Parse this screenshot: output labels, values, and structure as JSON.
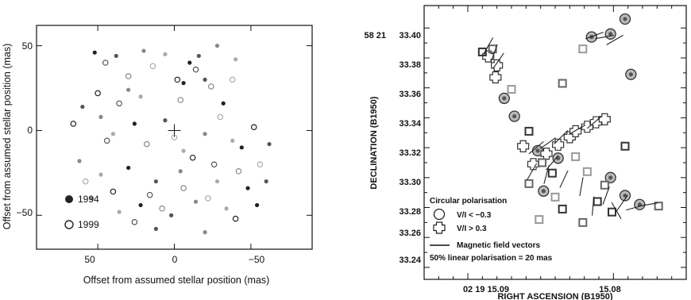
{
  "chart_data": [
    {
      "type": "scatter",
      "xlabel": "Offset from assumed stellar position (mas)",
      "ylabel": "Offset from assumed stellar position (mas)",
      "xlim": [
        90,
        -90
      ],
      "ylim": [
        -70,
        62
      ],
      "x_ticks": [
        "50",
        "0",
        "−50"
      ],
      "y_ticks": [
        "50",
        "0",
        "−50"
      ],
      "legend": [
        {
          "label": "1994",
          "marker": "filled-circle"
        },
        {
          "label": "1999",
          "marker": "open-circle"
        }
      ],
      "series": [
        {
          "name": "1994",
          "marker": "filled",
          "points": [
            [
              52,
              46
            ],
            [
              38,
              44
            ],
            [
              20,
              47
            ],
            [
              6,
              45
            ],
            [
              -10,
              40
            ],
            [
              -16,
              44
            ],
            [
              -28,
              50
            ],
            [
              -40,
              42
            ],
            [
              -6,
              28
            ],
            [
              -20,
              30
            ],
            [
              30,
              24
            ],
            [
              22,
              20
            ],
            [
              -32,
              16
            ],
            [
              60,
              14
            ],
            [
              48,
              8
            ],
            [
              40,
              -2
            ],
            [
              26,
              4
            ],
            [
              6,
              6
            ],
            [
              -20,
              -2
            ],
            [
              -38,
              -6
            ],
            [
              -44,
              -10
            ],
            [
              -62,
              -8
            ],
            [
              62,
              -18
            ],
            [
              48,
              -26
            ],
            [
              30,
              -22
            ],
            [
              12,
              -30
            ],
            [
              -4,
              -24
            ],
            [
              -28,
              -30
            ],
            [
              -48,
              -34
            ],
            [
              -60,
              -30
            ],
            [
              54,
              -40
            ],
            [
              36,
              -48
            ],
            [
              22,
              -44
            ],
            [
              2,
              -50
            ],
            [
              -14,
              -42
            ],
            [
              -34,
              -46
            ],
            [
              -54,
              -44
            ],
            [
              12,
              -58
            ],
            [
              -20,
              -60
            ],
            [
              -6,
              -12
            ]
          ]
        },
        {
          "name": "1999",
          "marker": "open",
          "points": [
            [
              45,
              40
            ],
            [
              30,
              32
            ],
            [
              14,
              38
            ],
            [
              -2,
              30
            ],
            [
              -14,
              36
            ],
            [
              -24,
              26
            ],
            [
              -38,
              30
            ],
            [
              50,
              22
            ],
            [
              36,
              16
            ],
            [
              -4,
              18
            ],
            [
              -30,
              8
            ],
            [
              -52,
              2
            ],
            [
              44,
              -6
            ],
            [
              18,
              -8
            ],
            [
              0,
              -4
            ],
            [
              -12,
              -16
            ],
            [
              -26,
              -20
            ],
            [
              -42,
              -24
            ],
            [
              58,
              -30
            ],
            [
              40,
              -36
            ],
            [
              16,
              -38
            ],
            [
              -6,
              -34
            ],
            [
              -22,
              -40
            ],
            [
              -40,
              -52
            ],
            [
              26,
              -54
            ],
            [
              8,
              -46
            ],
            [
              -56,
              -20
            ],
            [
              66,
              4
            ]
          ]
        }
      ]
    },
    {
      "type": "scatter",
      "xlabel": "RIGHT ASCENSION (B1950)",
      "ylabel": "DECLINATION (B1950)",
      "y_prefix_label": "58 21",
      "xlim": [
        15.093,
        15.075
      ],
      "ylim": [
        33.232,
        33.415
      ],
      "x_ticks": [
        "02 19 15.09",
        "15.08"
      ],
      "y_ticks": [
        "33.40",
        "33.38",
        "33.36",
        "33.34",
        "33.32",
        "33.30",
        "33.28",
        "33.26",
        "33.24"
      ],
      "legend": [
        {
          "label": "Circular polarisation"
        },
        {
          "label": "V/I < −0.3",
          "marker": "circle"
        },
        {
          "label": "V/I > 0.3",
          "marker": "cross"
        },
        {
          "label": "Magnetic field vectors",
          "marker": "line"
        },
        {
          "label": "50% linear polarisation = 20 mas"
        }
      ],
      "series": [
        {
          "name": "",
          "marker": "circle",
          "points": [
            [
              15.0815,
              33.394
            ],
            [
              15.0802,
              33.396
            ],
            [
              15.0792,
              33.406
            ],
            [
              15.0788,
              33.369
            ],
            [
              15.0875,
              33.353
            ],
            [
              15.0868,
              33.341
            ],
            [
              15.0852,
              33.318
            ],
            [
              15.0838,
              33.313
            ],
            [
              15.0802,
              33.3
            ],
            [
              15.0848,
              33.291
            ],
            [
              15.0792,
              33.288
            ],
            [
              15.0782,
              33.282
            ]
          ]
        },
        {
          "name": "",
          "marker": "cross",
          "points": [
            [
              15.0886,
              33.381
            ],
            [
              15.088,
              33.375
            ],
            [
              15.0881,
              33.367
            ],
            [
              15.0862,
              33.321
            ],
            [
              15.0855,
              33.309
            ],
            [
              15.0846,
              33.316
            ],
            [
              15.0838,
              33.322
            ],
            [
              15.083,
              33.327
            ],
            [
              15.0826,
              33.331
            ],
            [
              15.0818,
              33.334
            ],
            [
              15.0812,
              33.337
            ],
            [
              15.0806,
              33.339
            ]
          ]
        },
        {
          "name": "",
          "marker": "square",
          "points": [
            [
              15.089,
              33.384
            ],
            [
              15.0883,
              33.386
            ],
            [
              15.087,
              33.359
            ],
            [
              15.0858,
              33.331
            ],
            [
              15.0835,
              33.363
            ],
            [
              15.0821,
              33.386
            ],
            [
              15.0842,
              33.303
            ],
            [
              15.0858,
              33.296
            ],
            [
              15.084,
              33.287
            ],
            [
              15.0835,
              33.279
            ],
            [
              15.0821,
              33.27
            ],
            [
              15.0851,
              33.272
            ],
            [
              15.0801,
              33.277
            ],
            [
              15.0806,
              33.295
            ],
            [
              15.0818,
              33.304
            ],
            [
              15.0792,
              33.321
            ],
            [
              15.0769,
              33.281
            ],
            [
              15.0826,
              33.314
            ],
            [
              15.0811,
              33.284
            ],
            [
              15.0849,
              33.31
            ]
          ]
        },
        {
          "name": "",
          "marker": "vector",
          "points": [
            [
              15.0886,
              33.388,
              60
            ],
            [
              15.0882,
              33.383,
              70
            ],
            [
              15.0879,
              33.378,
              55
            ],
            [
              15.0813,
              33.395,
              20
            ],
            [
              15.0806,
              33.394,
              10
            ],
            [
              15.0799,
              33.392,
              30
            ],
            [
              15.0853,
              33.32,
              40
            ],
            [
              15.0845,
              33.323,
              35
            ],
            [
              15.0836,
              33.327,
              45
            ],
            [
              15.0825,
              33.332,
              30
            ],
            [
              15.0813,
              33.337,
              40
            ],
            [
              15.0856,
              33.304,
              60
            ],
            [
              15.0846,
              33.302,
              75
            ],
            [
              15.0834,
              33.299,
              65
            ],
            [
              15.0822,
              33.294,
              80
            ],
            [
              15.0805,
              33.288,
              70
            ],
            [
              15.0794,
              33.283,
              55
            ],
            [
              15.0785,
              33.28,
              15
            ],
            [
              15.0776,
              33.282,
              10
            ],
            [
              15.0814,
              33.281,
              85
            ],
            [
              15.0798,
              33.278,
              120
            ],
            [
              15.0842,
              33.31,
              50
            ]
          ]
        }
      ]
    }
  ]
}
